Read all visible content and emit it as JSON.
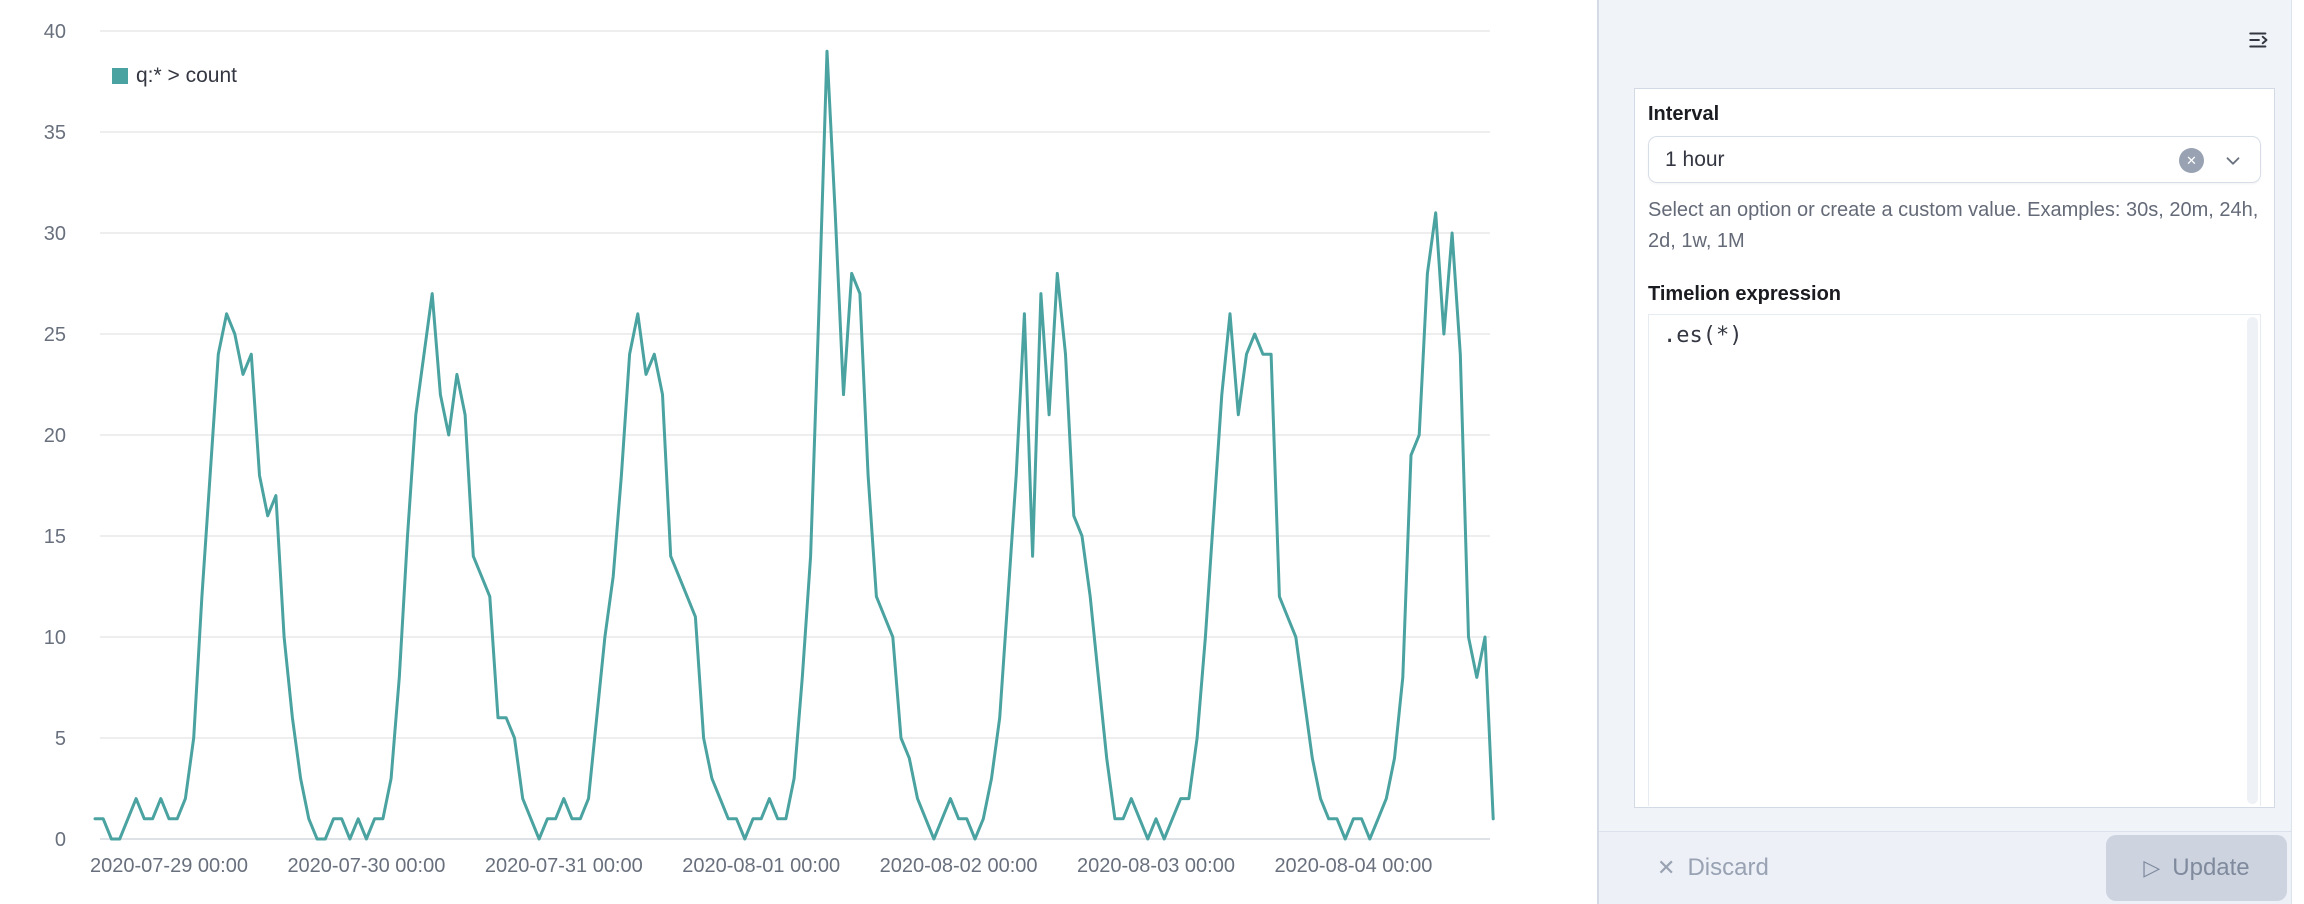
{
  "chart": {
    "legend": "q:* > count",
    "line_color": "#4AA3A0",
    "grid_color": "#E8E8E8",
    "zero_line_color": "#D4D8DE",
    "axis_label_color": "#69707D",
    "y_ticks": [
      0,
      5,
      10,
      15,
      20,
      25,
      30,
      35,
      40
    ],
    "x_tick_labels": [
      "2020-07-29 00:00",
      "2020-07-30 00:00",
      "2020-07-31 00:00",
      "2020-08-01 00:00",
      "2020-08-02 00:00",
      "2020-08-03 00:00",
      "2020-08-04 00:00"
    ]
  },
  "chart_data": {
    "type": "line",
    "title": "",
    "series_name": "q:* > count",
    "interval": "1 hour",
    "x_start": "2020-07-28 15:00",
    "start_offset_hours": -9,
    "ylim": [
      0,
      40
    ],
    "grid": true,
    "legend_position": "top-left",
    "values": [
      1,
      1,
      0,
      0,
      1,
      2,
      1,
      1,
      2,
      1,
      1,
      2,
      5,
      12,
      18,
      24,
      26,
      25,
      23,
      24,
      18,
      16,
      17,
      10,
      6,
      3,
      1,
      0,
      0,
      1,
      1,
      0,
      1,
      0,
      1,
      1,
      3,
      8,
      15,
      21,
      24,
      27,
      22,
      20,
      23,
      21,
      14,
      13,
      12,
      6,
      6,
      5,
      2,
      1,
      0,
      1,
      1,
      2,
      1,
      1,
      2,
      6,
      10,
      13,
      18,
      24,
      26,
      23,
      24,
      22,
      14,
      13,
      12,
      11,
      5,
      3,
      2,
      1,
      1,
      0,
      1,
      1,
      2,
      1,
      1,
      3,
      8,
      14,
      26,
      39,
      31,
      22,
      28,
      27,
      18,
      12,
      11,
      10,
      5,
      4,
      2,
      1,
      0,
      1,
      2,
      1,
      1,
      0,
      1,
      3,
      6,
      12,
      18,
      26,
      14,
      27,
      21,
      28,
      24,
      16,
      15,
      12,
      8,
      4,
      1,
      1,
      2,
      1,
      0,
      1,
      0,
      1,
      2,
      2,
      5,
      10,
      16,
      22,
      26,
      21,
      24,
      25,
      24,
      24,
      12,
      11,
      10,
      7,
      4,
      2,
      1,
      1,
      0,
      1,
      1,
      0,
      1,
      2,
      4,
      8,
      19,
      20,
      28,
      31,
      25,
      30,
      24,
      10,
      8,
      10,
      1
    ]
  },
  "panel": {
    "interval_label": "Interval",
    "interval_value": "1 hour",
    "interval_help": "Select an option or create a custom value. Examples: 30s, 20m, 24h, 2d, 1w, 1M",
    "expression_label": "Timelion expression",
    "expression_value": ".es(*)",
    "discard_label": "Discard",
    "update_label": "Update"
  }
}
